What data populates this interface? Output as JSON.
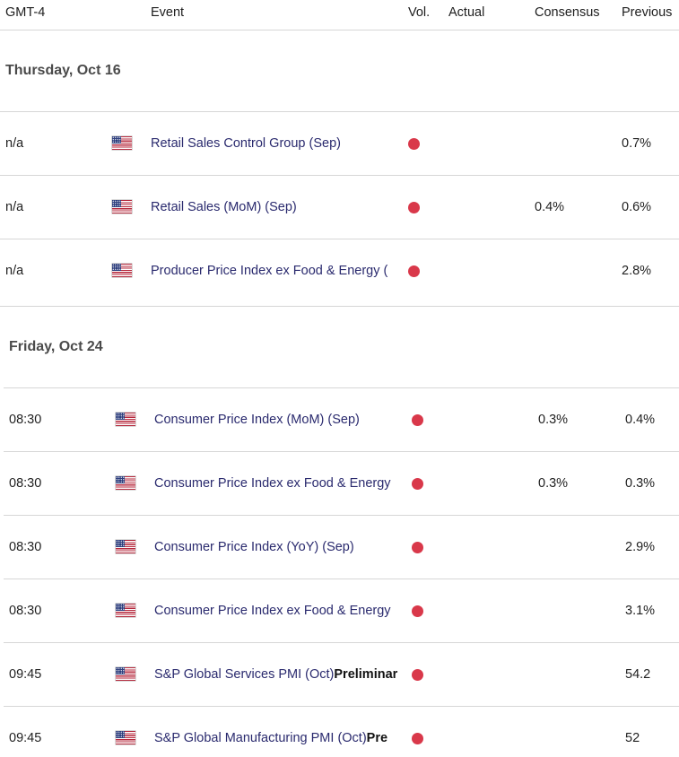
{
  "header": {
    "timezone": "GMT-4",
    "event": "Event",
    "vol": "Vol.",
    "actual": "Actual",
    "consensus": "Consensus",
    "previous": "Previous"
  },
  "days": [
    {
      "label": "Thursday, Oct 16",
      "rows": [
        {
          "time": "n/a",
          "event": "Retail Sales Control Group (Sep)",
          "suffix": "",
          "consensus": "",
          "previous": "0.7%"
        },
        {
          "time": "n/a",
          "event": "Retail Sales (MoM) (Sep)",
          "suffix": "",
          "consensus": "0.4%",
          "previous": "0.6%"
        },
        {
          "time": "n/a",
          "event": "Producer Price Index ex Food & Energy (",
          "suffix": "",
          "consensus": "",
          "previous": "2.8%"
        }
      ]
    },
    {
      "label": "Friday, Oct 24",
      "rows": [
        {
          "time": "08:30",
          "event": "Consumer Price Index (MoM) (Sep)",
          "suffix": "",
          "consensus": "0.3%",
          "previous": "0.4%"
        },
        {
          "time": "08:30",
          "event": "Consumer Price Index ex Food & Energy",
          "suffix": "",
          "consensus": "0.3%",
          "previous": "0.3%"
        },
        {
          "time": "08:30",
          "event": "Consumer Price Index (YoY) (Sep)",
          "suffix": "",
          "consensus": "",
          "previous": "2.9%"
        },
        {
          "time": "08:30",
          "event": "Consumer Price Index ex Food & Energy",
          "suffix": "",
          "consensus": "",
          "previous": "3.1%"
        },
        {
          "time": "09:45",
          "event": "S&P Global Services PMI (Oct)",
          "suffix": "Preliminar",
          "consensus": "",
          "previous": "54.2"
        },
        {
          "time": "09:45",
          "event": "S&P Global Manufacturing PMI (Oct)",
          "suffix": "Pre",
          "consensus": "",
          "previous": "52"
        }
      ]
    }
  ],
  "icons": {
    "flag": "us-flag-icon",
    "volatility": "high-volatility-dot-icon"
  },
  "colors": {
    "volatility_high": "#d9384a",
    "event_text": "#2a2a6e",
    "divider": "#d6d6d6"
  }
}
